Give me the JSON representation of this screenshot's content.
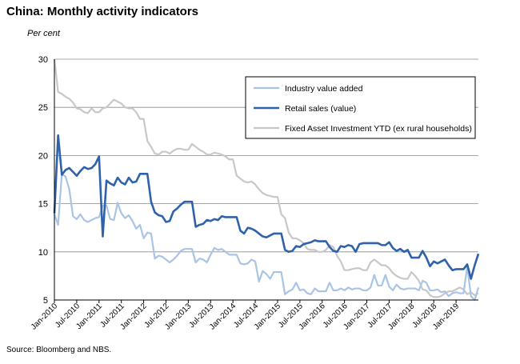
{
  "chart_data": {
    "type": "line",
    "title": "China: Monthly activity indicators",
    "ylabel": "Per cent",
    "source": "Source: Bloomberg and NBS.",
    "ylim": [
      5,
      30
    ],
    "yticks": [
      5,
      10,
      15,
      20,
      25,
      30
    ],
    "start": {
      "year": 2010,
      "month": 1
    },
    "n_months": 115,
    "xtick_labels": [
      "Jan-2010",
      "Jul-2010",
      "Jan-2011",
      "Jul-2011",
      "Jan-2012",
      "Jul-2012",
      "Jan-2013",
      "Jul-2013",
      "Jan-2014",
      "Jul-2014",
      "Jan-2015",
      "Jul-2015",
      "Jan-2016",
      "Jul-2016",
      "Jan-2017",
      "Jul-2017",
      "Jan-2018",
      "Jul-2018",
      "Jan-2019"
    ],
    "series": [
      {
        "name": "Industry value added",
        "color": "#a9c4e4",
        "values": [
          13.9,
          12.8,
          18.1,
          17.8,
          16.5,
          13.7,
          13.4,
          13.9,
          13.3,
          13.1,
          13.3,
          13.5,
          13.6,
          14.8,
          14.8,
          13.4,
          13.3,
          15.1,
          14.0,
          13.5,
          13.8,
          13.2,
          12.4,
          12.8,
          11.4,
          12.0,
          11.9,
          9.3,
          9.6,
          9.5,
          9.2,
          8.9,
          9.2,
          9.6,
          10.1,
          10.3,
          10.3,
          10.3,
          8.9,
          9.3,
          9.2,
          8.9,
          9.7,
          10.4,
          10.2,
          10.3,
          10.0,
          9.7,
          9.7,
          9.7,
          8.8,
          8.7,
          8.8,
          9.2,
          9.0,
          6.9,
          8.0,
          7.7,
          7.2,
          7.9,
          7.9,
          7.9,
          5.6,
          5.9,
          6.1,
          6.8,
          6.0,
          6.1,
          5.7,
          5.6,
          6.2,
          5.9,
          5.9,
          5.9,
          6.8,
          6.0,
          6.0,
          6.2,
          6.0,
          6.3,
          6.1,
          6.2,
          6.2,
          6.0,
          6.0,
          6.3,
          7.6,
          6.5,
          6.5,
          7.6,
          6.4,
          6.0,
          6.6,
          6.2,
          6.1,
          6.2,
          6.2,
          6.2,
          6.0,
          7.0,
          6.8,
          6.0,
          6.0,
          6.1,
          5.8,
          5.9,
          5.4,
          5.7,
          5.8,
          5.7,
          5.7,
          8.5,
          5.4,
          5.0,
          6.3
        ]
      },
      {
        "name": "Retail sales (value)",
        "color": "#2e62ab",
        "values": [
          14.0,
          22.1,
          18.0,
          18.5,
          18.7,
          18.3,
          17.9,
          18.4,
          18.8,
          18.6,
          18.7,
          19.1,
          19.9,
          11.6,
          17.4,
          17.1,
          16.9,
          17.7,
          17.2,
          17.0,
          17.7,
          17.2,
          17.3,
          18.1,
          18.1,
          18.1,
          15.2,
          14.1,
          13.8,
          13.7,
          13.1,
          13.2,
          14.2,
          14.5,
          14.9,
          15.2,
          15.2,
          15.2,
          12.6,
          12.8,
          12.9,
          13.3,
          13.2,
          13.4,
          13.3,
          13.7,
          13.6,
          13.6,
          13.6,
          13.6,
          12.2,
          11.9,
          12.5,
          12.4,
          12.2,
          11.9,
          11.6,
          11.5,
          11.7,
          11.9,
          11.9,
          11.9,
          10.2,
          10.0,
          10.1,
          10.6,
          10.5,
          10.8,
          10.9,
          11.0,
          11.2,
          11.1,
          11.1,
          11.1,
          10.5,
          10.1,
          10.0,
          10.6,
          10.5,
          10.7,
          10.6,
          10.0,
          10.8,
          10.9,
          10.9,
          10.9,
          10.9,
          10.9,
          10.7,
          10.7,
          11.0,
          10.4,
          10.1,
          10.3,
          10.0,
          10.2,
          9.4,
          9.4,
          9.4,
          10.1,
          9.4,
          8.5,
          9.0,
          8.8,
          9.0,
          9.2,
          8.6,
          8.1,
          8.2,
          8.2,
          8.2,
          8.7,
          7.2,
          8.6,
          9.8
        ]
      },
      {
        "name": "Fixed Asset Investment YTD (ex rural households)",
        "color": "#c8c8c8",
        "values": [
          30.0,
          26.6,
          26.4,
          26.1,
          25.9,
          25.5,
          24.9,
          24.8,
          24.5,
          24.4,
          24.9,
          24.5,
          24.5,
          24.9,
          25.0,
          25.4,
          25.8,
          25.6,
          25.4,
          25.0,
          24.9,
          24.9,
          24.5,
          23.8,
          23.8,
          21.5,
          20.9,
          20.2,
          20.1,
          20.4,
          20.4,
          20.2,
          20.5,
          20.7,
          20.7,
          20.6,
          20.6,
          21.2,
          20.9,
          20.6,
          20.4,
          20.1,
          20.1,
          20.3,
          20.2,
          20.1,
          19.9,
          19.6,
          19.6,
          17.9,
          17.6,
          17.3,
          17.2,
          17.3,
          17.0,
          16.5,
          16.1,
          15.9,
          15.8,
          15.7,
          15.7,
          13.9,
          13.5,
          12.0,
          11.4,
          11.4,
          11.2,
          10.9,
          10.3,
          10.2,
          10.2,
          10.0,
          10.0,
          10.2,
          10.7,
          10.5,
          9.6,
          9.0,
          8.1,
          8.1,
          8.2,
          8.3,
          8.3,
          8.1,
          8.1,
          8.9,
          9.2,
          8.9,
          8.6,
          8.6,
          8.3,
          7.8,
          7.5,
          7.3,
          7.2,
          7.2,
          7.9,
          7.5,
          7.0,
          6.1,
          6.0,
          5.5,
          5.3,
          5.3,
          5.4,
          5.7,
          5.9,
          5.9,
          6.1,
          6.3,
          6.1,
          5.6,
          5.8,
          5.5,
          5.7
        ]
      }
    ]
  }
}
